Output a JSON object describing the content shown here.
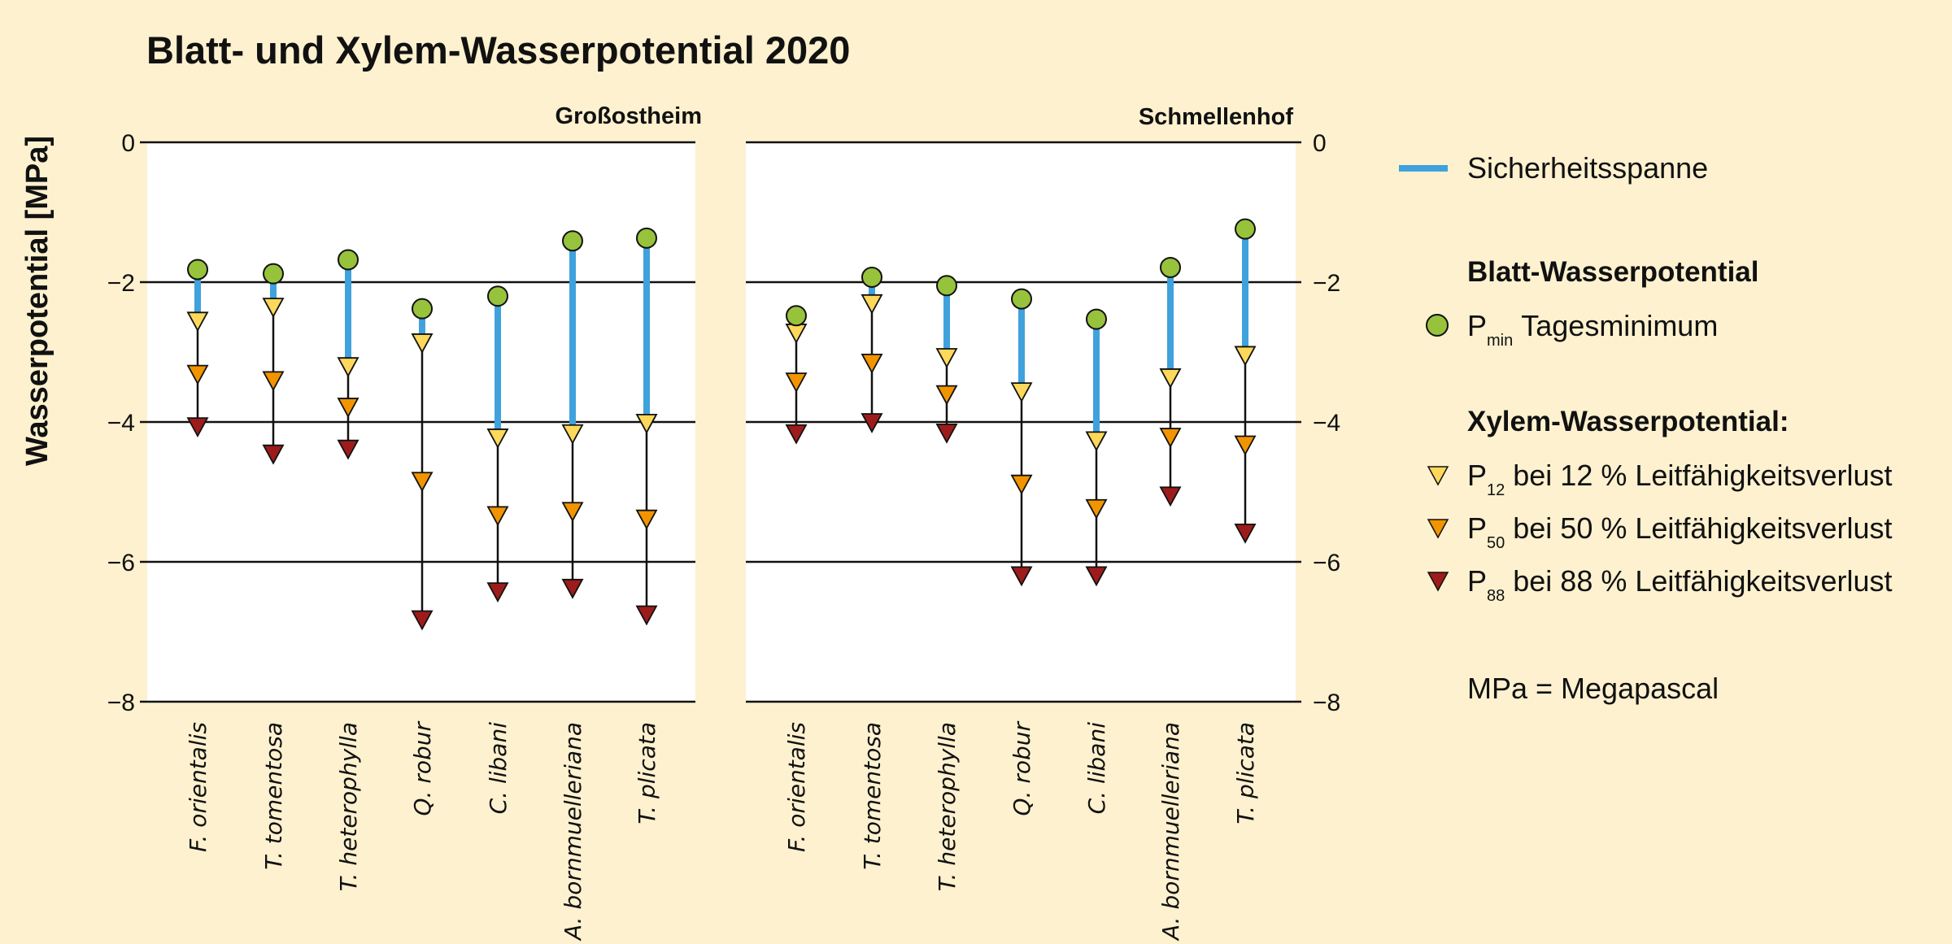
{
  "chart_data": {
    "type": "scatter",
    "title": "Blatt- und Xylem-Wasserpotential 2020",
    "ylabel": "Wasserpotential [MPa]",
    "xlabel": "",
    "ylim": [
      -8,
      0
    ],
    "yticks": [
      0,
      -2,
      -4,
      -6,
      -8
    ],
    "ytick_labels": [
      "0",
      "−2",
      "−4",
      "−6",
      "−8"
    ],
    "grid": true,
    "legend_position": "right",
    "categories": [
      "F. orientalis",
      "T. tomentosa",
      "T. heterophylla",
      "Q. robur",
      "C. libani",
      "A. bornmuelleriana",
      "T. plicata"
    ],
    "panels": [
      {
        "name": "Großostheim",
        "series": [
          {
            "name": "Pmin",
            "values": [
              -1.82,
              -1.88,
              -1.68,
              -2.38,
              -2.2,
              -1.41,
              -1.37
            ]
          },
          {
            "name": "P12",
            "values": [
              -2.55,
              -2.35,
              -3.2,
              -2.86,
              -4.22,
              -4.16,
              -4.01
            ]
          },
          {
            "name": "P50",
            "values": [
              -3.31,
              -3.4,
              -3.78,
              -4.84,
              -5.33,
              -5.27,
              -5.38
            ]
          },
          {
            "name": "P88",
            "values": [
              -4.06,
              -4.45,
              -4.38,
              -6.82,
              -6.42,
              -6.37,
              -6.75
            ]
          }
        ]
      },
      {
        "name": "Schmellenhof",
        "series": [
          {
            "name": "Pmin",
            "values": [
              -2.48,
              -1.93,
              -2.05,
              -2.24,
              -2.53,
              -1.79,
              -1.24
            ]
          },
          {
            "name": "P12",
            "values": [
              -2.72,
              -2.3,
              -3.07,
              -3.56,
              -4.26,
              -3.36,
              -3.04
            ]
          },
          {
            "name": "P50",
            "values": [
              -3.42,
              -3.15,
              -3.6,
              -4.88,
              -5.23,
              -4.21,
              -4.32
            ]
          },
          {
            "name": "P88",
            "values": [
              -4.16,
              -4.0,
              -4.15,
              -6.19,
              -6.19,
              -5.05,
              -5.58
            ]
          }
        ]
      }
    ],
    "safety_margin": "Sicherheitsspanne = Pmin bis P12 (blaue Linie)",
    "colors": {
      "background": "#fdf1cf",
      "plot_bg": "#ffffff",
      "safety": "#3fa2dc",
      "Pmin": "#97c23c",
      "P12": "#fdd85a",
      "P50": "#f29400",
      "P88": "#9e1b1b",
      "stroke": "#111111"
    }
  },
  "legend": {
    "safety": "Sicherheitsspanne",
    "leaf_heading": "Blatt-Wasserpotential",
    "pmin_main": "P",
    "pmin_sub": "min",
    "pmin_text": "Tagesminimum",
    "xylem_heading": "Xylem-Wasserpotential:",
    "p12_main": "P",
    "p12_sub": "12",
    "p12_text": "bei 12 % Leitfähigkeitsverlust",
    "p50_main": "P",
    "p50_sub": "50",
    "p50_text": "bei 50 % Leitfähigkeitsverlust",
    "p88_main": "P",
    "p88_sub": "88",
    "p88_text": "bei 88 % Leitfähigkeitsverlust",
    "unit_note": "MPa = Megapascal"
  }
}
